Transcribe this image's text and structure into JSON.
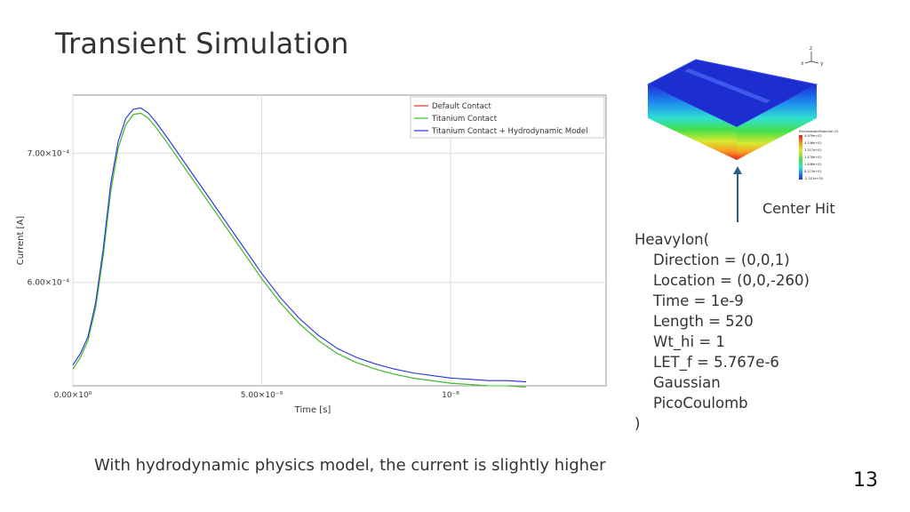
{
  "slide": {
    "title": "Transient Simulation",
    "caption": "With hydrodynamic physics model, the current is slightly higher",
    "page_number": "13"
  },
  "device_figure": {
    "label": "Center Hit",
    "colorbar_title": "ElectrostaticPotential (V)",
    "colorbar_ticks": [
      "4.979e+02",
      "4.146e+02",
      "3.317e+02",
      "2.478e+02",
      "1.646e+02",
      "8.113e+01",
      "-2.201e+00"
    ],
    "axis_labels": [
      "z",
      "x",
      "y"
    ]
  },
  "heavyion": {
    "header": "HeavyIon(",
    "params": [
      "Direction = (0,0,1)",
      "Location = (0,0,-260)",
      "Time = 1e-9",
      "Length = 520",
      "Wt_hi = 1",
      "LET_f = 5.767e-6",
      "Gaussian",
      "PicoCoulomb"
    ],
    "footer": ")"
  },
  "chart_data": {
    "type": "line",
    "xlabel": "Time [s]",
    "ylabel": "Current [A]",
    "xlim": [
      0,
      1.2e-08
    ],
    "ylim": [
      0.00052,
      0.000745
    ],
    "x_ticks": [
      {
        "value": 0,
        "label": "0.00×10⁰"
      },
      {
        "value": 5e-09,
        "label": "5.00×10⁻⁹"
      },
      {
        "value": 1e-08,
        "label": "10⁻⁸"
      }
    ],
    "y_ticks": [
      {
        "value": 0.0006,
        "label": "6.00×10⁻⁴"
      },
      {
        "value": 0.0007,
        "label": "7.00×10⁻⁴"
      }
    ],
    "grid": true,
    "legend_position": "top-right",
    "series": [
      {
        "name": "Default Contact",
        "color": "#e03030",
        "x": [
          0,
          2e-10,
          4e-10,
          6e-10,
          8e-10,
          1e-09,
          1.2e-09,
          1.4e-09,
          1.6e-09,
          1.8e-09,
          2e-09,
          2.2e-09,
          2.5e-09,
          3e-09,
          3.5e-09,
          4e-09,
          4.5e-09,
          5e-09,
          5.5e-09,
          6e-09,
          6.5e-09,
          7e-09,
          7.5e-09,
          8e-09,
          8.5e-09,
          9e-09,
          9.5e-09,
          1e-08,
          1.05e-08,
          1.1e-08,
          1.15e-08,
          1.2e-08
        ],
        "y": [
          0.000533,
          0.000542,
          0.000555,
          0.00058,
          0.00062,
          0.00067,
          0.000704,
          0.000722,
          0.00073,
          0.000731,
          0.000727,
          0.00072,
          0.000708,
          0.000687,
          0.000666,
          0.000645,
          0.000624,
          0.000603,
          0.000584,
          0.000568,
          0.000555,
          0.000545,
          0.000538,
          0.000533,
          0.000529,
          0.000526,
          0.000524,
          0.000522,
          0.000521,
          0.00052,
          0.00052,
          0.000519
        ]
      },
      {
        "name": "Titanium Contact",
        "color": "#33cc33",
        "x": [
          0,
          2e-10,
          4e-10,
          6e-10,
          8e-10,
          1e-09,
          1.2e-09,
          1.4e-09,
          1.6e-09,
          1.8e-09,
          2e-09,
          2.2e-09,
          2.5e-09,
          3e-09,
          3.5e-09,
          4e-09,
          4.5e-09,
          5e-09,
          5.5e-09,
          6e-09,
          6.5e-09,
          7e-09,
          7.5e-09,
          8e-09,
          8.5e-09,
          9e-09,
          9.5e-09,
          1e-08,
          1.05e-08,
          1.1e-08,
          1.15e-08,
          1.2e-08
        ],
        "y": [
          0.000533,
          0.000542,
          0.000555,
          0.00058,
          0.00062,
          0.00067,
          0.000704,
          0.000722,
          0.00073,
          0.000731,
          0.000727,
          0.00072,
          0.000708,
          0.000687,
          0.000666,
          0.000645,
          0.000624,
          0.000603,
          0.000584,
          0.000568,
          0.000555,
          0.000545,
          0.000538,
          0.000533,
          0.000529,
          0.000526,
          0.000524,
          0.000522,
          0.000521,
          0.00052,
          0.00052,
          0.000519
        ]
      },
      {
        "name": "Titanium Contact + Hydrodynamic Model",
        "color": "#2233dd",
        "x": [
          0,
          2e-10,
          4e-10,
          6e-10,
          8e-10,
          1e-09,
          1.2e-09,
          1.4e-09,
          1.6e-09,
          1.8e-09,
          2e-09,
          2.2e-09,
          2.5e-09,
          3e-09,
          3.5e-09,
          4e-09,
          4.5e-09,
          5e-09,
          5.5e-09,
          6e-09,
          6.5e-09,
          7e-09,
          7.5e-09,
          8e-09,
          8.5e-09,
          9e-09,
          9.5e-09,
          1e-08,
          1.05e-08,
          1.1e-08,
          1.15e-08,
          1.2e-08
        ],
        "y": [
          0.000536,
          0.000545,
          0.000558,
          0.000584,
          0.000625,
          0.000676,
          0.000709,
          0.000727,
          0.000734,
          0.000735,
          0.000731,
          0.000724,
          0.000712,
          0.000691,
          0.00067,
          0.000649,
          0.000628,
          0.000607,
          0.000588,
          0.000572,
          0.000559,
          0.000549,
          0.000542,
          0.000537,
          0.000533,
          0.00053,
          0.000528,
          0.000526,
          0.000525,
          0.000524,
          0.000524,
          0.000523
        ]
      }
    ]
  }
}
